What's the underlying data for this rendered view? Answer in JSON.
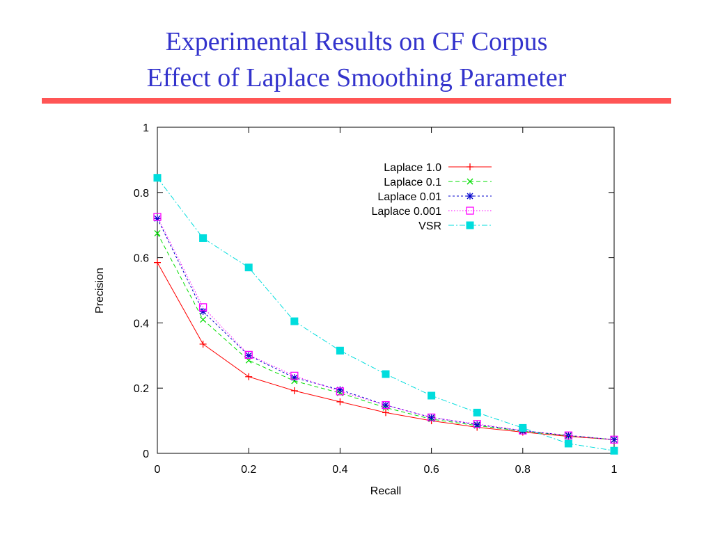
{
  "slide": {
    "title_line1": "Experimental Results on CF Corpus",
    "title_line2": "Effect of Laplace Smoothing Parameter"
  },
  "colors": {
    "title": "#3333cc",
    "rule": "#ff5555"
  },
  "chart_data": {
    "type": "line",
    "xlabel": "Recall",
    "ylabel": "Precision",
    "xlim": [
      0,
      1
    ],
    "ylim": [
      0,
      1
    ],
    "xticks": [
      "0",
      "0.2",
      "0.4",
      "0.6",
      "0.8",
      "1"
    ],
    "yticks": [
      "0",
      "0.2",
      "0.4",
      "0.6",
      "0.8",
      "1"
    ],
    "grid": false,
    "legend_position": "top-right",
    "x": [
      0,
      0.1,
      0.2,
      0.3,
      0.4,
      0.5,
      0.6,
      0.7,
      0.8,
      0.9,
      1.0
    ],
    "series": [
      {
        "name": "Laplace 1.0",
        "color": "#ff0000",
        "marker": "plus",
        "dash": "solid",
        "values": [
          0.585,
          0.335,
          0.235,
          0.192,
          0.158,
          0.125,
          0.1,
          0.08,
          0.065,
          0.052,
          0.042
        ]
      },
      {
        "name": "Laplace 0.1",
        "color": "#00dd00",
        "marker": "cross",
        "dash": "long",
        "values": [
          0.675,
          0.41,
          0.285,
          0.222,
          0.185,
          0.14,
          0.105,
          0.085,
          0.068,
          0.054,
          0.042
        ]
      },
      {
        "name": "Laplace 0.01",
        "color": "#0000cc",
        "marker": "star",
        "dash": "short",
        "values": [
          0.72,
          0.435,
          0.3,
          0.232,
          0.195,
          0.148,
          0.11,
          0.088,
          0.069,
          0.055,
          0.042
        ]
      },
      {
        "name": "Laplace 0.001",
        "color": "#ff00ff",
        "marker": "square",
        "dash": "dot",
        "values": [
          0.725,
          0.448,
          0.302,
          0.238,
          0.19,
          0.148,
          0.11,
          0.09,
          0.07,
          0.055,
          0.042
        ]
      },
      {
        "name": "VSR",
        "color": "#00dddd",
        "marker": "filled-square",
        "dash": "dashdot",
        "values": [
          0.845,
          0.66,
          0.57,
          0.405,
          0.315,
          0.243,
          0.177,
          0.125,
          0.078,
          0.03,
          0.008
        ]
      }
    ]
  }
}
